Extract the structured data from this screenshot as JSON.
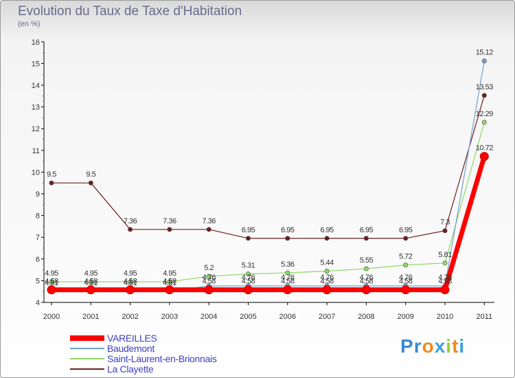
{
  "header": {
    "title": "Evolution du Taux de Taxe d'Habitation",
    "unit": "(en %)"
  },
  "logo": {
    "text": "Proxiti",
    "colors": [
      "#3a8ad0",
      "#3a8ad0",
      "#f08a1c",
      "#3aa0d8",
      "#9acd32",
      "#f08a1c",
      "#3aa0d8"
    ]
  },
  "chart_data": {
    "type": "line",
    "title": "Evolution du Taux de Taxe d'Habitation",
    "ylabel": "(en %)",
    "xlabel": "",
    "ylim": [
      4,
      16
    ],
    "yticks": [
      4,
      5,
      6,
      7,
      8,
      9,
      10,
      11,
      12,
      13,
      14,
      15,
      16
    ],
    "grid": false,
    "legend": "bottom-left",
    "x": [
      "2000",
      "2001",
      "2002",
      "2003",
      "2004",
      "2005",
      "2006",
      "2007",
      "2008",
      "2009",
      "2010",
      "2011"
    ],
    "series": [
      {
        "name": "La Clayette",
        "color": "#6b1f22",
        "values": [
          9.5,
          9.5,
          7.36,
          7.36,
          7.36,
          6.95,
          6.95,
          6.95,
          6.95,
          6.95,
          7.3,
          13.53
        ],
        "labels": [
          "9.5",
          "9.5",
          "7.36",
          "7.36",
          "7.36",
          "6.95",
          "6.95",
          "6.95",
          "6.95",
          "6.95",
          "7.3",
          "13.53"
        ]
      },
      {
        "name": "Saint-Laurent-en-Brionnais",
        "color": "#8ed866",
        "values": [
          4.95,
          4.95,
          4.95,
          4.95,
          5.2,
          5.31,
          5.36,
          5.44,
          5.55,
          5.72,
          5.81,
          12.29
        ],
        "labels": [
          "4.95",
          "4.95",
          "4.95",
          "4.95",
          "5.2",
          "5.31",
          "5.36",
          "5.44",
          "5.55",
          "5.72",
          "5.81",
          "12.29"
        ]
      },
      {
        "name": "Baudemont",
        "color": "#6fa0cf",
        "values": [
          4.51,
          4.51,
          4.51,
          4.51,
          4.76,
          4.76,
          4.76,
          4.76,
          4.76,
          4.76,
          4.76,
          15.12
        ],
        "labels": [
          "4.51",
          "4.51",
          "4.51",
          "4.51",
          "4.76",
          "4.76",
          "4.76",
          "4.76",
          "4.76",
          "4.76",
          "4.76",
          "15.12"
        ]
      },
      {
        "name": "VAREILLES",
        "color": "#ff0000",
        "values": [
          4.58,
          4.58,
          4.58,
          4.58,
          4.58,
          4.58,
          4.58,
          4.58,
          4.58,
          4.58,
          4.58,
          10.72
        ],
        "labels": [
          "4.58",
          "4.58",
          "4.58",
          "4.58",
          "4.58",
          "4.58",
          "4.58",
          "4.58",
          "4.58",
          "4.58",
          "4.58",
          "10.72"
        ]
      }
    ]
  },
  "legend": {
    "items": [
      {
        "label": "VAREILLES",
        "color": "#ff0000"
      },
      {
        "label": "Baudemont",
        "color": "#6fa0cf"
      },
      {
        "label": "Saint-Laurent-en-Brionnais",
        "color": "#8ed866"
      },
      {
        "label": "La Clayette",
        "color": "#6b1f22"
      }
    ]
  }
}
